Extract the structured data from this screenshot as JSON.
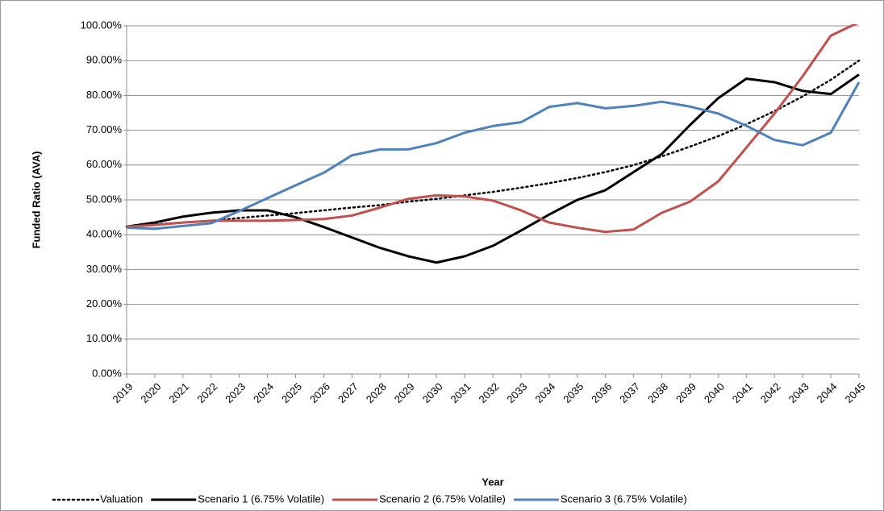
{
  "chart_data": {
    "type": "line",
    "y_label": "Funded Ratio (AVA)",
    "x_label": "Year",
    "categories": [
      "2019",
      "2020",
      "2021",
      "2022",
      "2023",
      "2024",
      "2025",
      "2026",
      "2027",
      "2028",
      "2029",
      "2030",
      "2031",
      "2032",
      "2033",
      "2034",
      "2035",
      "2036",
      "2037",
      "2038",
      "2039",
      "2040",
      "2041",
      "2042",
      "2043",
      "2044",
      "2045"
    ],
    "ylim": [
      0,
      100
    ],
    "yticks": [
      {
        "value": 0,
        "label": "0.00%"
      },
      {
        "value": 10,
        "label": "10.00%"
      },
      {
        "value": 20,
        "label": "20.00%"
      },
      {
        "value": 30,
        "label": "30.00%"
      },
      {
        "value": 40,
        "label": "40.00%"
      },
      {
        "value": 50,
        "label": "50.00%"
      },
      {
        "value": 60,
        "label": "60.00%"
      },
      {
        "value": 70,
        "label": "70.00%"
      },
      {
        "value": 80,
        "label": "80.00%"
      },
      {
        "value": 90,
        "label": "90.00%"
      },
      {
        "value": 100,
        "label": "100.00%"
      }
    ],
    "grid": true,
    "legend": "bottom",
    "series": [
      {
        "name": "Valuation",
        "color": "#000000",
        "dash": "dotted",
        "values": [
          42.3,
          43,
          43.5,
          44,
          44.8,
          45.5,
          46.2,
          47,
          47.8,
          48.5,
          49.5,
          50.3,
          51.3,
          52.3,
          53.5,
          54.8,
          56.3,
          58,
          60,
          62.5,
          65.3,
          68.3,
          71.7,
          75.5,
          79.7,
          84.5,
          90
        ]
      },
      {
        "name": "Scenario 1 (6.75% Volatile)",
        "color": "#000000",
        "values": [
          42.3,
          43.5,
          45.2,
          46.3,
          47,
          47,
          45,
          42.2,
          39.2,
          36.2,
          33.8,
          32,
          33.8,
          36.8,
          41.2,
          45.8,
          50,
          52.8,
          58,
          63.2,
          71.5,
          79.2,
          84.8,
          83.8,
          81.3,
          80.4,
          86
        ]
      },
      {
        "name": "Scenario 2 (6.75% Volatile)",
        "color": "#c0504d",
        "values": [
          42.3,
          42.8,
          43.5,
          44,
          44,
          44,
          44.2,
          44.5,
          45.5,
          47.8,
          50.3,
          51.3,
          51,
          49.8,
          47,
          43.5,
          42,
          40.8,
          41.5,
          46.3,
          49.5,
          55.3,
          65,
          74.8,
          85.5,
          97.2,
          101
        ]
      },
      {
        "name": "Scenario 3 (6.75% Volatile)",
        "color": "#4f81bd",
        "values": [
          42,
          41.7,
          42.5,
          43.3,
          46.8,
          50.5,
          54.2,
          57.8,
          62.8,
          64.5,
          64.5,
          66.3,
          69.3,
          71.2,
          72.3,
          76.7,
          77.8,
          76.3,
          77,
          78.2,
          76.8,
          74.8,
          71.3,
          67.2,
          65.7,
          69.3,
          83.8
        ]
      }
    ]
  }
}
